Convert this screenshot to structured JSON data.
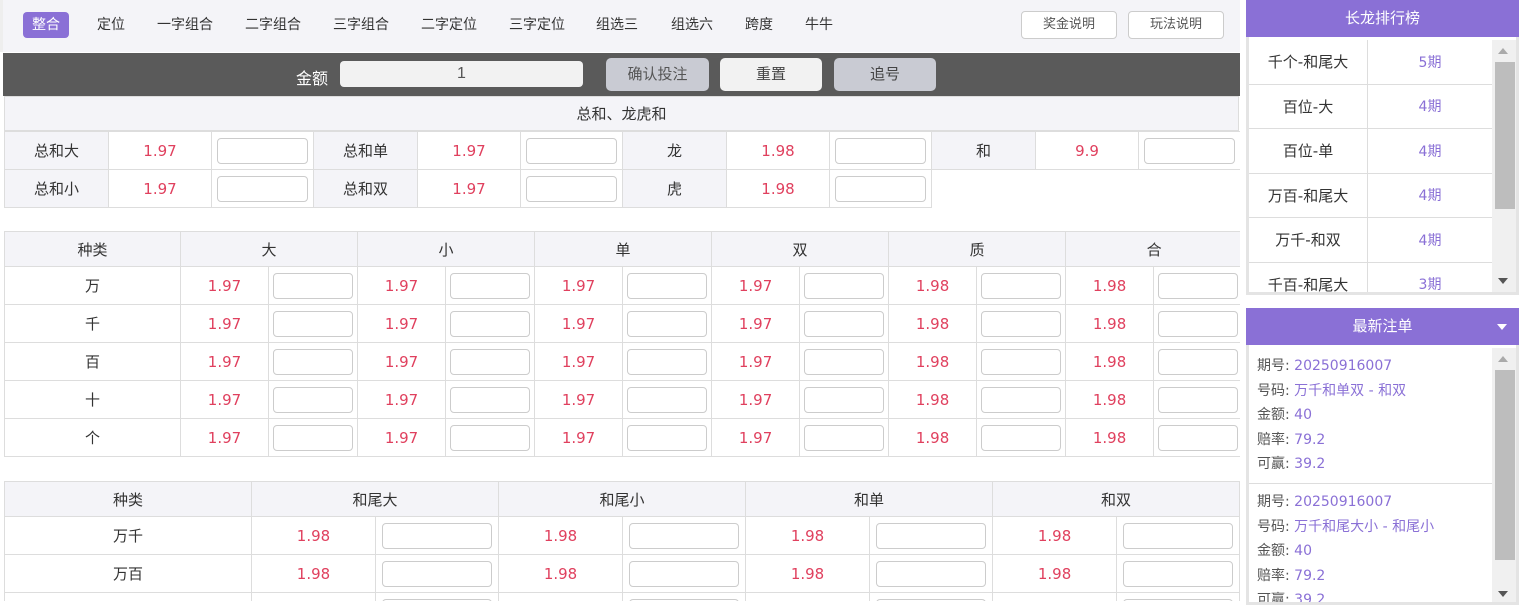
{
  "nav": {
    "tabs": [
      "整合",
      "定位",
      "一字组合",
      "二字组合",
      "三字组合",
      "二字定位",
      "三字定位",
      "组选三",
      "组选六",
      "跨度",
      "牛牛"
    ],
    "active": 0,
    "prize_btn": "奖金说明",
    "rules_btn": "玩法说明"
  },
  "bet_bar": {
    "amount_label": "金额",
    "amount_value": "1",
    "confirm": "确认投注",
    "reset": "重置",
    "chase": "追号"
  },
  "sum_section": {
    "title": "总和、龙虎和",
    "rows": [
      [
        {
          "label": "总和大",
          "odds": "1.97"
        },
        {
          "label": "总和单",
          "odds": "1.97"
        },
        {
          "label": "龙",
          "odds": "1.98"
        },
        {
          "label": "和",
          "odds": "9.9"
        }
      ],
      [
        {
          "label": "总和小",
          "odds": "1.97"
        },
        {
          "label": "总和双",
          "odds": "1.97"
        },
        {
          "label": "虎",
          "odds": "1.98"
        }
      ]
    ]
  },
  "pos_table": {
    "headers": [
      "种类",
      "大",
      "小",
      "单",
      "双",
      "质",
      "合"
    ],
    "rows": [
      {
        "label": "万",
        "odds": [
          "1.97",
          "1.97",
          "1.97",
          "1.97",
          "1.98",
          "1.98"
        ]
      },
      {
        "label": "千",
        "odds": [
          "1.97",
          "1.97",
          "1.97",
          "1.97",
          "1.98",
          "1.98"
        ]
      },
      {
        "label": "百",
        "odds": [
          "1.97",
          "1.97",
          "1.97",
          "1.97",
          "1.98",
          "1.98"
        ]
      },
      {
        "label": "十",
        "odds": [
          "1.97",
          "1.97",
          "1.97",
          "1.97",
          "1.98",
          "1.98"
        ]
      },
      {
        "label": "个",
        "odds": [
          "1.97",
          "1.97",
          "1.97",
          "1.97",
          "1.98",
          "1.98"
        ]
      }
    ]
  },
  "pair_table": {
    "headers": [
      "种类",
      "和尾大",
      "和尾小",
      "和单",
      "和双"
    ],
    "rows": [
      {
        "label": "万千",
        "odds": [
          "1.98",
          "1.98",
          "1.98",
          "1.98"
        ]
      },
      {
        "label": "万百",
        "odds": [
          "1.98",
          "1.98",
          "1.98",
          "1.98"
        ]
      },
      {
        "label": "",
        "odds": [
          "",
          "",
          "",
          ""
        ]
      }
    ]
  },
  "ranking": {
    "title": "长龙排行榜",
    "items": [
      {
        "name": "千个-和尾大",
        "periods": "5期"
      },
      {
        "name": "百位-大",
        "periods": "4期"
      },
      {
        "name": "百位-单",
        "periods": "4期"
      },
      {
        "name": "万百-和尾大",
        "periods": "4期"
      },
      {
        "name": "万千-和双",
        "periods": "4期"
      },
      {
        "name": "千百-和尾大",
        "periods": "3期"
      }
    ]
  },
  "orders": {
    "title": "最新注单",
    "labels": {
      "issue": "期号:",
      "number": "号码:",
      "amount": "金额:",
      "odds": "赔率:",
      "win": "可赢:"
    },
    "items": [
      {
        "issue": "20250916007",
        "number": "万千和单双 - 和双",
        "amount": "40",
        "odds": "79.2",
        "win": "39.2"
      },
      {
        "issue": "20250916007",
        "number": "万千和尾大小 - 和尾小",
        "amount": "40",
        "odds": "79.2",
        "win": "39.2"
      }
    ]
  },
  "colors": {
    "accent": "#8a70d6",
    "odds": "#e0405e",
    "bar": "#5a5a5a"
  }
}
